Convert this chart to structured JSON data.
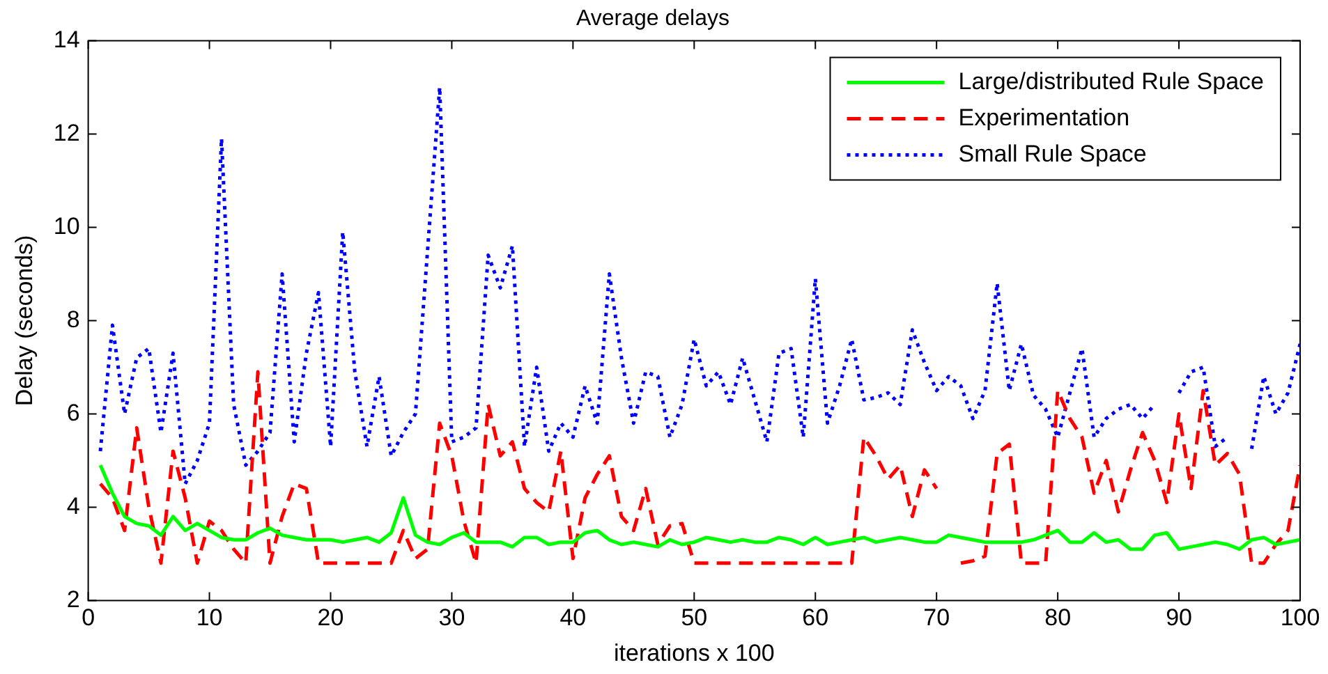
{
  "chart_data": {
    "type": "line",
    "title": "Average delays",
    "xlabel": "iterations x 100",
    "ylabel": "Delay (seconds)",
    "x": [
      1,
      2,
      3,
      4,
      5,
      6,
      7,
      8,
      9,
      10,
      11,
      12,
      13,
      14,
      15,
      16,
      17,
      18,
      19,
      20,
      21,
      22,
      23,
      24,
      25,
      26,
      27,
      28,
      29,
      30,
      31,
      32,
      33,
      34,
      35,
      36,
      37,
      38,
      39,
      40,
      41,
      42,
      43,
      44,
      45,
      46,
      47,
      48,
      49,
      50,
      51,
      52,
      53,
      54,
      55,
      56,
      57,
      58,
      59,
      60,
      61,
      62,
      63,
      64,
      65,
      66,
      67,
      68,
      69,
      70,
      71,
      72,
      73,
      74,
      75,
      76,
      77,
      78,
      79,
      80,
      81,
      82,
      83,
      84,
      85,
      86,
      87,
      88,
      89,
      90,
      91,
      92,
      93,
      94,
      95,
      96,
      97,
      98,
      99,
      100
    ],
    "series": [
      {
        "name": "Large/distributed Rule Space",
        "color": "#00ff00",
        "line_style": "solid",
        "values": [
          4.9,
          4.3,
          3.8,
          3.65,
          3.6,
          3.4,
          3.8,
          3.5,
          3.65,
          3.5,
          3.35,
          3.3,
          3.3,
          3.45,
          3.55,
          3.4,
          3.35,
          3.3,
          3.3,
          3.3,
          3.25,
          3.3,
          3.35,
          3.25,
          3.45,
          4.2,
          3.4,
          3.25,
          3.2,
          3.35,
          3.45,
          3.25,
          3.25,
          3.25,
          3.15,
          3.35,
          3.35,
          3.2,
          3.25,
          3.25,
          3.45,
          3.5,
          3.3,
          3.2,
          3.25,
          3.2,
          3.15,
          3.3,
          3.2,
          3.25,
          3.35,
          3.3,
          3.25,
          3.3,
          3.25,
          3.25,
          3.35,
          3.3,
          3.2,
          3.35,
          3.2,
          3.25,
          3.3,
          3.35,
          3.25,
          3.3,
          3.35,
          3.3,
          3.25,
          3.25,
          3.4,
          3.35,
          3.3,
          3.25,
          3.25,
          3.25,
          3.25,
          3.3,
          3.4,
          3.5,
          3.25,
          3.25,
          3.45,
          3.25,
          3.3,
          3.1,
          3.1,
          3.4,
          3.45,
          3.1,
          3.15,
          3.2,
          3.25,
          3.2,
          3.1,
          3.3,
          3.35,
          3.2,
          3.25,
          3.3
        ]
      },
      {
        "name": "Experimentation",
        "color": "#ff0000",
        "line_style": "dashed",
        "values": [
          4.5,
          4.2,
          3.5,
          5.7,
          4.0,
          2.8,
          5.2,
          4.2,
          2.8,
          3.7,
          3.5,
          3.1,
          2.8,
          6.9,
          2.8,
          3.8,
          4.5,
          4.4,
          2.8,
          2.8,
          2.8,
          2.8,
          2.8,
          2.8,
          2.8,
          3.5,
          2.9,
          3.1,
          5.8,
          5.1,
          3.7,
          2.8,
          6.2,
          5.1,
          5.4,
          4.4,
          4.1,
          3.9,
          5.2,
          2.9,
          4.2,
          4.7,
          5.1,
          3.8,
          3.5,
          4.4,
          3.2,
          3.6,
          3.65,
          2.8,
          2.8,
          2.8,
          2.8,
          2.8,
          2.8,
          2.8,
          2.8,
          2.8,
          2.8,
          2.8,
          2.8,
          2.8,
          2.8,
          5.5,
          5.1,
          4.6,
          4.9,
          3.8,
          4.8,
          4.4,
          null,
          2.8,
          2.85,
          2.95,
          5.15,
          5.35,
          2.8,
          2.8,
          2.8,
          6.5,
          5.9,
          5.5,
          4.3,
          5.0,
          3.9,
          4.8,
          5.6,
          5.0,
          4.1,
          6.0,
          4.4,
          6.5,
          4.9,
          5.15,
          4.7,
          2.8,
          2.8,
          3.2,
          3.5,
          4.9
        ]
      },
      {
        "name": "Small Rule Space",
        "color": "#0000ff",
        "line_style": "dotted",
        "values": [
          5.2,
          7.9,
          6.0,
          7.2,
          7.4,
          5.6,
          7.3,
          4.5,
          5.0,
          5.8,
          11.9,
          6.2,
          4.9,
          5.2,
          5.6,
          9.0,
          5.4,
          7.3,
          8.6,
          5.3,
          9.9,
          6.9,
          5.3,
          6.8,
          5.1,
          5.6,
          6.0,
          9.5,
          13.0,
          5.4,
          5.5,
          5.7,
          9.4,
          8.7,
          9.6,
          5.3,
          7.0,
          5.2,
          5.8,
          5.5,
          6.6,
          5.8,
          9.0,
          7.2,
          5.8,
          6.9,
          6.8,
          5.5,
          6.2,
          7.6,
          6.6,
          6.9,
          6.2,
          7.2,
          6.3,
          5.4,
          7.3,
          7.4,
          5.5,
          8.9,
          5.8,
          6.6,
          7.6,
          6.3,
          6.35,
          6.45,
          6.2,
          7.8,
          7.1,
          6.5,
          6.8,
          6.6,
          5.9,
          6.5,
          8.8,
          6.5,
          7.5,
          6.4,
          6.1,
          5.5,
          6.45,
          7.4,
          5.5,
          5.9,
          6.1,
          6.2,
          5.9,
          6.2,
          null,
          6.45,
          6.9,
          7.0,
          5.3,
          5.5,
          null,
          5.25,
          6.8,
          6.0,
          6.45,
          7.5
        ]
      }
    ],
    "xlim": [
      0,
      100
    ],
    "xticks": [
      0,
      10,
      20,
      30,
      40,
      50,
      60,
      70,
      80,
      90,
      100
    ],
    "ylim": [
      2,
      14
    ],
    "yticks": [
      2,
      4,
      6,
      8,
      10,
      12,
      14
    ],
    "grid": false,
    "legend": "top right",
    "marker": "none"
  }
}
